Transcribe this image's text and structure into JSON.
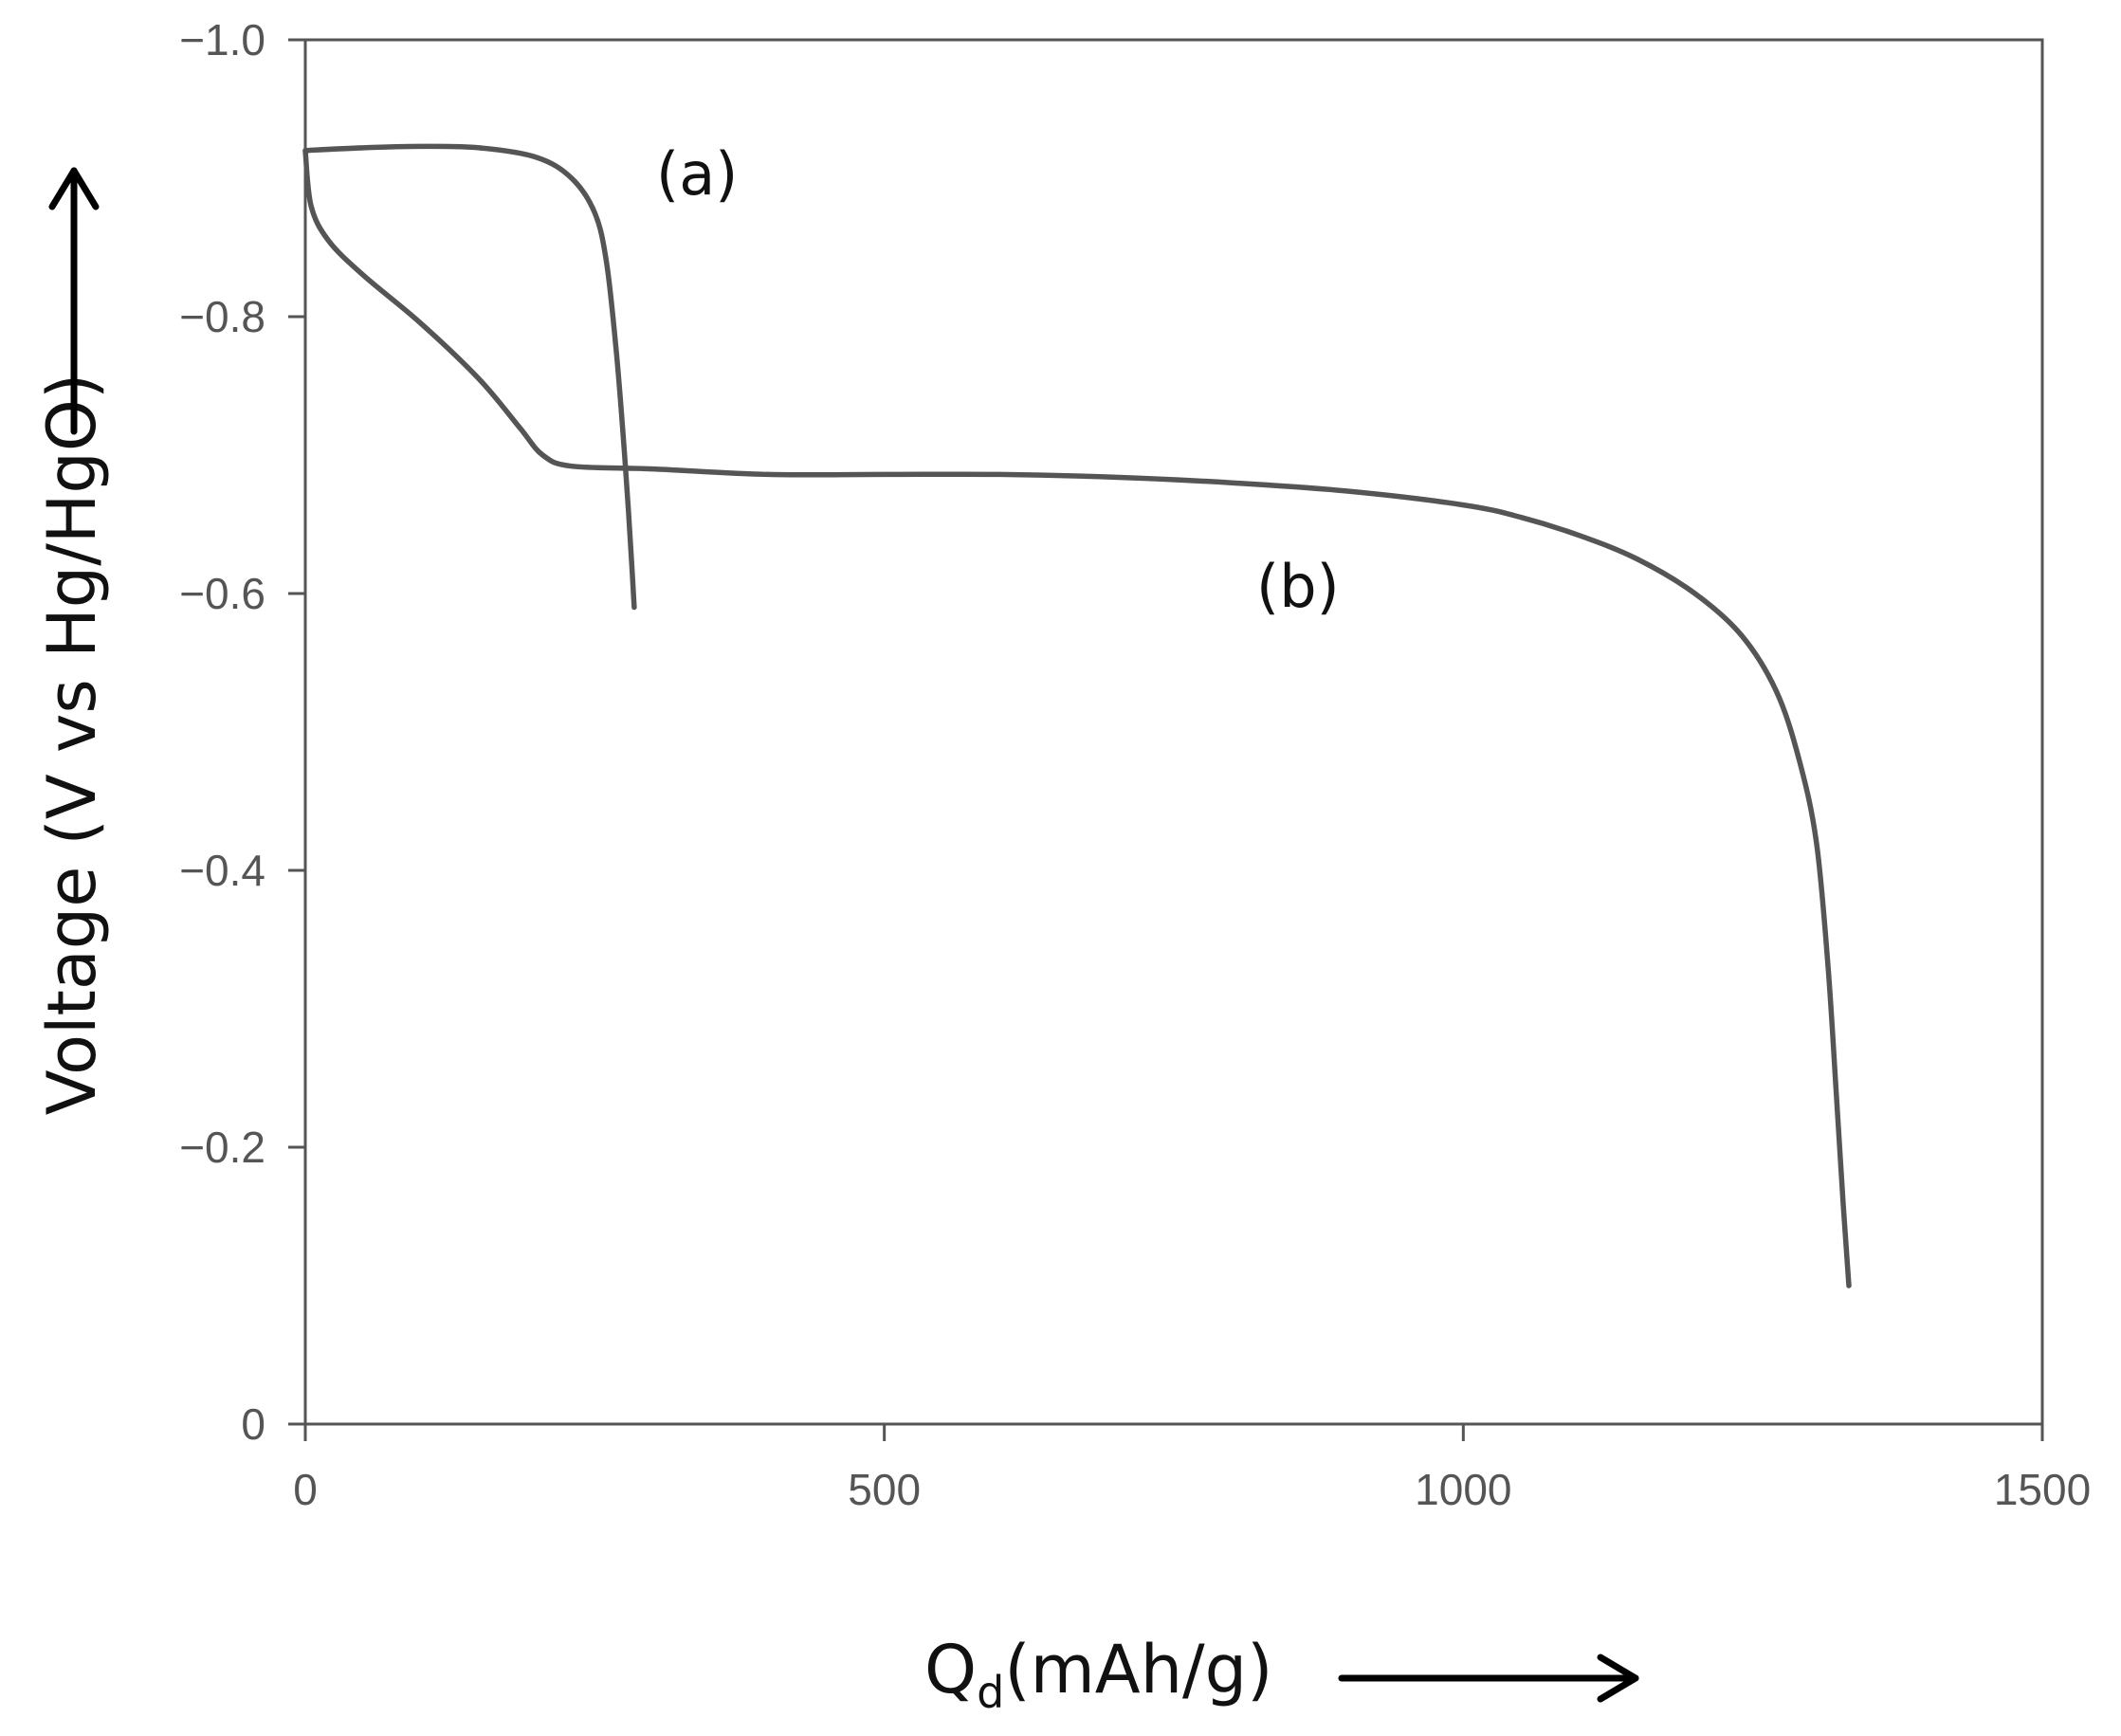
{
  "chart_data": {
    "type": "line",
    "title": "",
    "xlabel": "Q",
    "xlabel_subscript": "d",
    "xlabel_unit": "(mAh/g)",
    "ylabel": "Voltage (V vs Hg/HgO)",
    "xlim": [
      0,
      1500
    ],
    "ylim": [
      0,
      -1.0
    ],
    "y_axis_inverted": true,
    "grid": false,
    "x_ticks": [
      0,
      500,
      1000,
      1500
    ],
    "x_tick_labels": [
      "0",
      "500",
      "1000",
      "1500"
    ],
    "y_ticks": [
      -1.0,
      -0.8,
      -0.6,
      -0.4,
      -0.2,
      0
    ],
    "y_tick_labels": [
      "−1.0",
      "−0.8",
      "−0.6",
      "−0.4",
      "−0.2",
      "0"
    ],
    "series": [
      {
        "name": "(a)",
        "points": [
          [
            0,
            -0.92
          ],
          [
            50,
            -0.922
          ],
          [
            100,
            -0.923
          ],
          [
            150,
            -0.922
          ],
          [
            200,
            -0.915
          ],
          [
            230,
            -0.9
          ],
          [
            250,
            -0.875
          ],
          [
            260,
            -0.84
          ],
          [
            268,
            -0.78
          ],
          [
            274,
            -0.72
          ],
          [
            279,
            -0.66
          ],
          [
            282,
            -0.62
          ],
          [
            284,
            -0.59
          ]
        ]
      },
      {
        "name": "(b)",
        "points": [
          [
            0,
            -0.92
          ],
          [
            5,
            -0.88
          ],
          [
            20,
            -0.855
          ],
          [
            50,
            -0.83
          ],
          [
            100,
            -0.795
          ],
          [
            150,
            -0.755
          ],
          [
            185,
            -0.72
          ],
          [
            205,
            -0.7
          ],
          [
            230,
            -0.692
          ],
          [
            300,
            -0.69
          ],
          [
            400,
            -0.686
          ],
          [
            500,
            -0.686
          ],
          [
            600,
            -0.686
          ],
          [
            700,
            -0.684
          ],
          [
            800,
            -0.68
          ],
          [
            900,
            -0.674
          ],
          [
            1000,
            -0.664
          ],
          [
            1050,
            -0.655
          ],
          [
            1100,
            -0.642
          ],
          [
            1150,
            -0.625
          ],
          [
            1200,
            -0.6
          ],
          [
            1240,
            -0.57
          ],
          [
            1270,
            -0.53
          ],
          [
            1290,
            -0.48
          ],
          [
            1305,
            -0.42
          ],
          [
            1315,
            -0.33
          ],
          [
            1322,
            -0.24
          ],
          [
            1328,
            -0.16
          ],
          [
            1333,
            -0.1
          ]
        ]
      }
    ],
    "colors": {
      "line": "#555555",
      "axis": "#555555",
      "text": "#111111"
    }
  }
}
